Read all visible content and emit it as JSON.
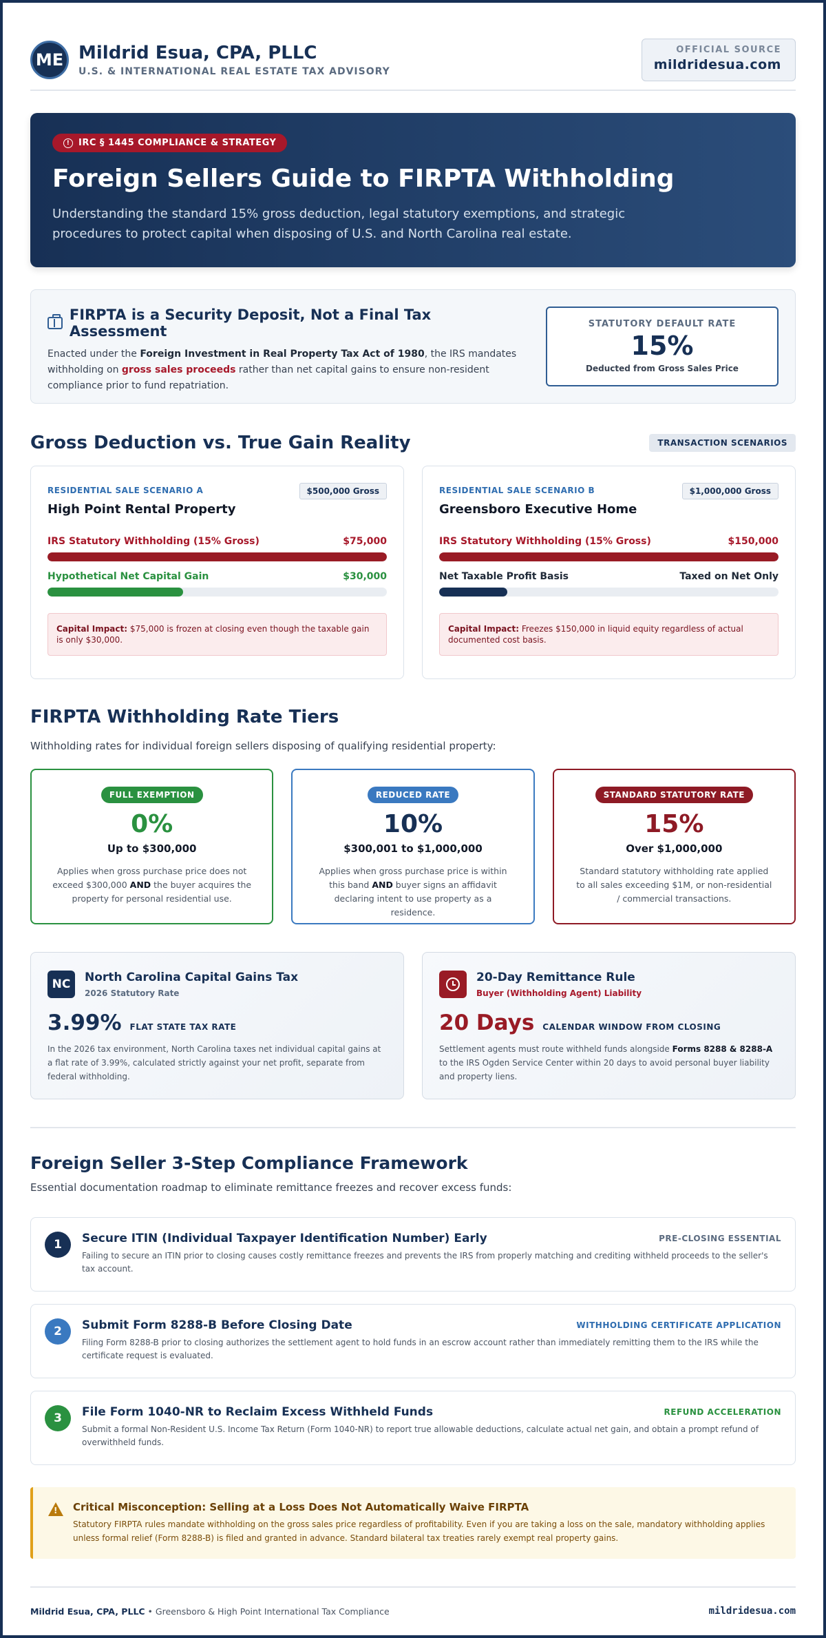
{
  "header": {
    "logo": "ME",
    "firm": "Mildrid Esua, CPA, PLLC",
    "tagline": "U.S. & INTERNATIONAL REAL ESTATE TAX ADVISORY",
    "source_label": "OFFICIAL SOURCE",
    "source_url": "mildridesua.com"
  },
  "hero": {
    "badge": "IRC § 1445 COMPLIANCE & STRATEGY",
    "title": "Foreign Sellers Guide to FIRPTA Withholding",
    "subtitle": "Understanding the standard 15% gross deduction, legal statutory exemptions, and strategic procedures to protect capital when disposing of U.S. and North Carolina real estate."
  },
  "intro": {
    "title": "FIRPTA is a Security Deposit, Not a Final Tax Assessment",
    "text_1": "Enacted under the ",
    "text_act": "Foreign Investment in Real Property Tax Act of 1980",
    "text_2": ", the IRS mandates withholding on ",
    "text_gross": "gross sales proceeds",
    "text_3": " rather than net capital gains to ensure non-resident compliance prior to fund repatriation.",
    "rate_label": "STATUTORY DEFAULT RATE",
    "rate_value": "15%",
    "rate_sub": "Deducted from Gross Sales Price"
  },
  "scenarios": {
    "title": "Gross Deduction vs. True Gain Reality",
    "badge": "TRANSACTION SCENARIOS",
    "items": [
      {
        "tag": "RESIDENTIAL SALE SCENARIO A",
        "gross": "$500,000 Gross",
        "name": "High Point Rental Property",
        "bar1_label": "IRS Statutory Withholding (15% Gross)",
        "bar1_value": "$75,000",
        "bar1_fill": 1.0,
        "bar2_label": "Hypothetical Net Capital Gain",
        "bar2_value": "$30,000",
        "bar2_fill": 0.4,
        "impact_label": "Capital Impact:",
        "impact_text": " $75,000 is frozen at closing even though the taxable gain is only $30,000."
      },
      {
        "tag": "RESIDENTIAL SALE SCENARIO B",
        "gross": "$1,000,000 Gross",
        "name": "Greensboro Executive Home",
        "bar1_label": "IRS Statutory Withholding (15% Gross)",
        "bar1_value": "$150,000",
        "bar1_fill": 1.0,
        "bar2_label": "Net Taxable Profit Basis",
        "bar2_value": "Taxed on Net Only",
        "bar2_fill": 0.2,
        "impact_label": "Capital Impact:",
        "impact_text": " Freezes $150,000 in liquid equity regardless of actual documented cost basis."
      }
    ]
  },
  "tiers": {
    "title": "FIRPTA Withholding Rate Tiers",
    "desc": "Withholding rates for individual foreign sellers disposing of qualifying residential property:",
    "items": [
      {
        "badge": "FULL EXEMPTION",
        "pct": "0%",
        "range": "Up to $300,000",
        "desc_1": "Applies when gross purchase price does not exceed $300,000 ",
        "desc_bold": "AND",
        "desc_2": " the buyer acquires the property for personal residential use."
      },
      {
        "badge": "REDUCED RATE",
        "pct": "10%",
        "range": "$300,001 to $1,000,000",
        "desc_1": "Applies when gross purchase price is within this band ",
        "desc_bold": "AND",
        "desc_2": " buyer signs an affidavit declaring intent to use property as a residence."
      },
      {
        "badge": "STANDARD STATUTORY RATE",
        "pct": "15%",
        "range": "Over $1,000,000",
        "desc_1": "Standard statutory withholding rate applied to all sales exceeding $1M, or non-residential / commercial transactions.",
        "desc_bold": "",
        "desc_2": ""
      }
    ]
  },
  "info": {
    "nc": {
      "icon": "NC",
      "title": "North Carolina Capital Gains Tax",
      "sub": "2026 Statutory Rate",
      "big": "3.99%",
      "big_label": "FLAT STATE TAX RATE",
      "text": "In the 2026 tax environment, North Carolina taxes net individual capital gains at a flat rate of 3.99%, calculated strictly against your net profit, separate from federal withholding."
    },
    "remit": {
      "title": "20-Day Remittance Rule",
      "sub": "Buyer (Withholding Agent) Liability",
      "big": "20 Days",
      "big_label": "CALENDAR WINDOW FROM CLOSING",
      "text_1": "Settlement agents must route withheld funds alongside ",
      "text_bold": "Forms 8288 & 8288-A",
      "text_2": " to the IRS Ogden Service Center within 20 days to avoid personal buyer liability and property liens."
    }
  },
  "steps": {
    "title": "Foreign Seller 3-Step Compliance Framework",
    "subtitle": "Essential documentation roadmap to eliminate remittance freezes and recover excess funds:",
    "items": [
      {
        "num": "1",
        "title": "Secure ITIN (Individual Taxpayer Identification Number) Early",
        "tag": "PRE-CLOSING ESSENTIAL",
        "text": "Failing to secure an ITIN prior to closing causes costly remittance freezes and prevents the IRS from properly matching and crediting withheld proceeds to the seller's tax account."
      },
      {
        "num": "2",
        "title": "Submit Form 8288-B Before Closing Date",
        "tag": "WITHHOLDING CERTIFICATE APPLICATION",
        "text": "Filing Form 8288-B prior to closing authorizes the settlement agent to hold funds in an escrow account rather than immediately remitting them to the IRS while the certificate request is evaluated."
      },
      {
        "num": "3",
        "title": "File Form 1040-NR to Reclaim Excess Withheld Funds",
        "tag": "REFUND ACCELERATION",
        "text": "Submit a formal Non-Resident U.S. Income Tax Return (Form 1040-NR) to report true allowable deductions, calculate actual net gain, and obtain a prompt refund of overwithheld funds."
      }
    ]
  },
  "alert": {
    "title": "Critical Misconception: Selling at a Loss Does Not Automatically Waive FIRPTA",
    "text": "Statutory FIRPTA rules mandate withholding on the gross sales price regardless of profitability. Even if you are taking a loss on the sale, mandatory withholding applies unless formal relief (Form 8288-B) is filed and granted in advance. Standard bilateral tax treaties rarely exempt real property gains."
  },
  "footer": {
    "firm": "Mildrid Esua, CPA, PLLC",
    "sep": " • ",
    "desc": "Greensboro & High Point International Tax Compliance",
    "url": "mildridesua.com"
  },
  "colors": {
    "navy": "#173055",
    "red": "#a7182a",
    "green": "#2a9140",
    "blue": "#3a79c0",
    "amber": "#e0a01a"
  }
}
